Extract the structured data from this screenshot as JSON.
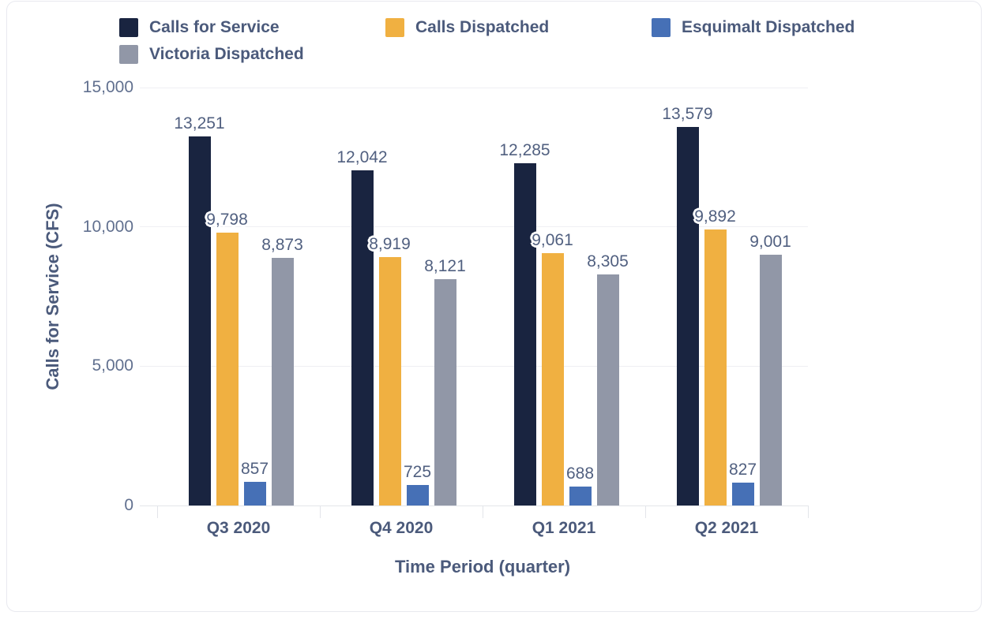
{
  "colors": {
    "navy": "#192440",
    "orange": "#f0b041",
    "blue": "#4670b6",
    "gray": "#9197a7",
    "text_primary": "#4b5a7b",
    "text_tick": "#61708f",
    "text_value": "#516080",
    "grid": "#efeff3",
    "axis": "#e3e5ea",
    "card_border": "#e8e9ef"
  },
  "chart_data": {
    "type": "bar",
    "title": "",
    "xlabel": "Time Period (quarter)",
    "ylabel": "Calls for Service (CFS)",
    "categories": [
      "Q3 2020",
      "Q4 2020",
      "Q1 2021",
      "Q2 2021"
    ],
    "series": [
      {
        "name": "Calls for Service",
        "color": "#192440",
        "values": [
          13251,
          12042,
          12285,
          13579
        ]
      },
      {
        "name": "Calls Dispatched",
        "color": "#f0b041",
        "values": [
          9798,
          8919,
          9061,
          9892
        ]
      },
      {
        "name": "Esquimalt Dispatched",
        "color": "#4670b6",
        "values": [
          857,
          725,
          688,
          827
        ]
      },
      {
        "name": "Victoria Dispatched",
        "color": "#9197a7",
        "values": [
          8873,
          8121,
          8305,
          9001
        ]
      }
    ],
    "value_labels": [
      [
        "13,251",
        "12,042",
        "12,285",
        "13,579"
      ],
      [
        "9,798",
        "8,919",
        "9,061",
        "9,892"
      ],
      [
        "857",
        "725",
        "688",
        "827"
      ],
      [
        "8,873",
        "8,121",
        "8,305",
        "9,001"
      ]
    ],
    "yticks": [
      0,
      5000,
      10000,
      15000
    ],
    "ytick_labels": [
      "0",
      "5,000",
      "10,000",
      "15,000"
    ],
    "ylim": [
      0,
      15000
    ],
    "grid": true,
    "legend_position": "top"
  }
}
